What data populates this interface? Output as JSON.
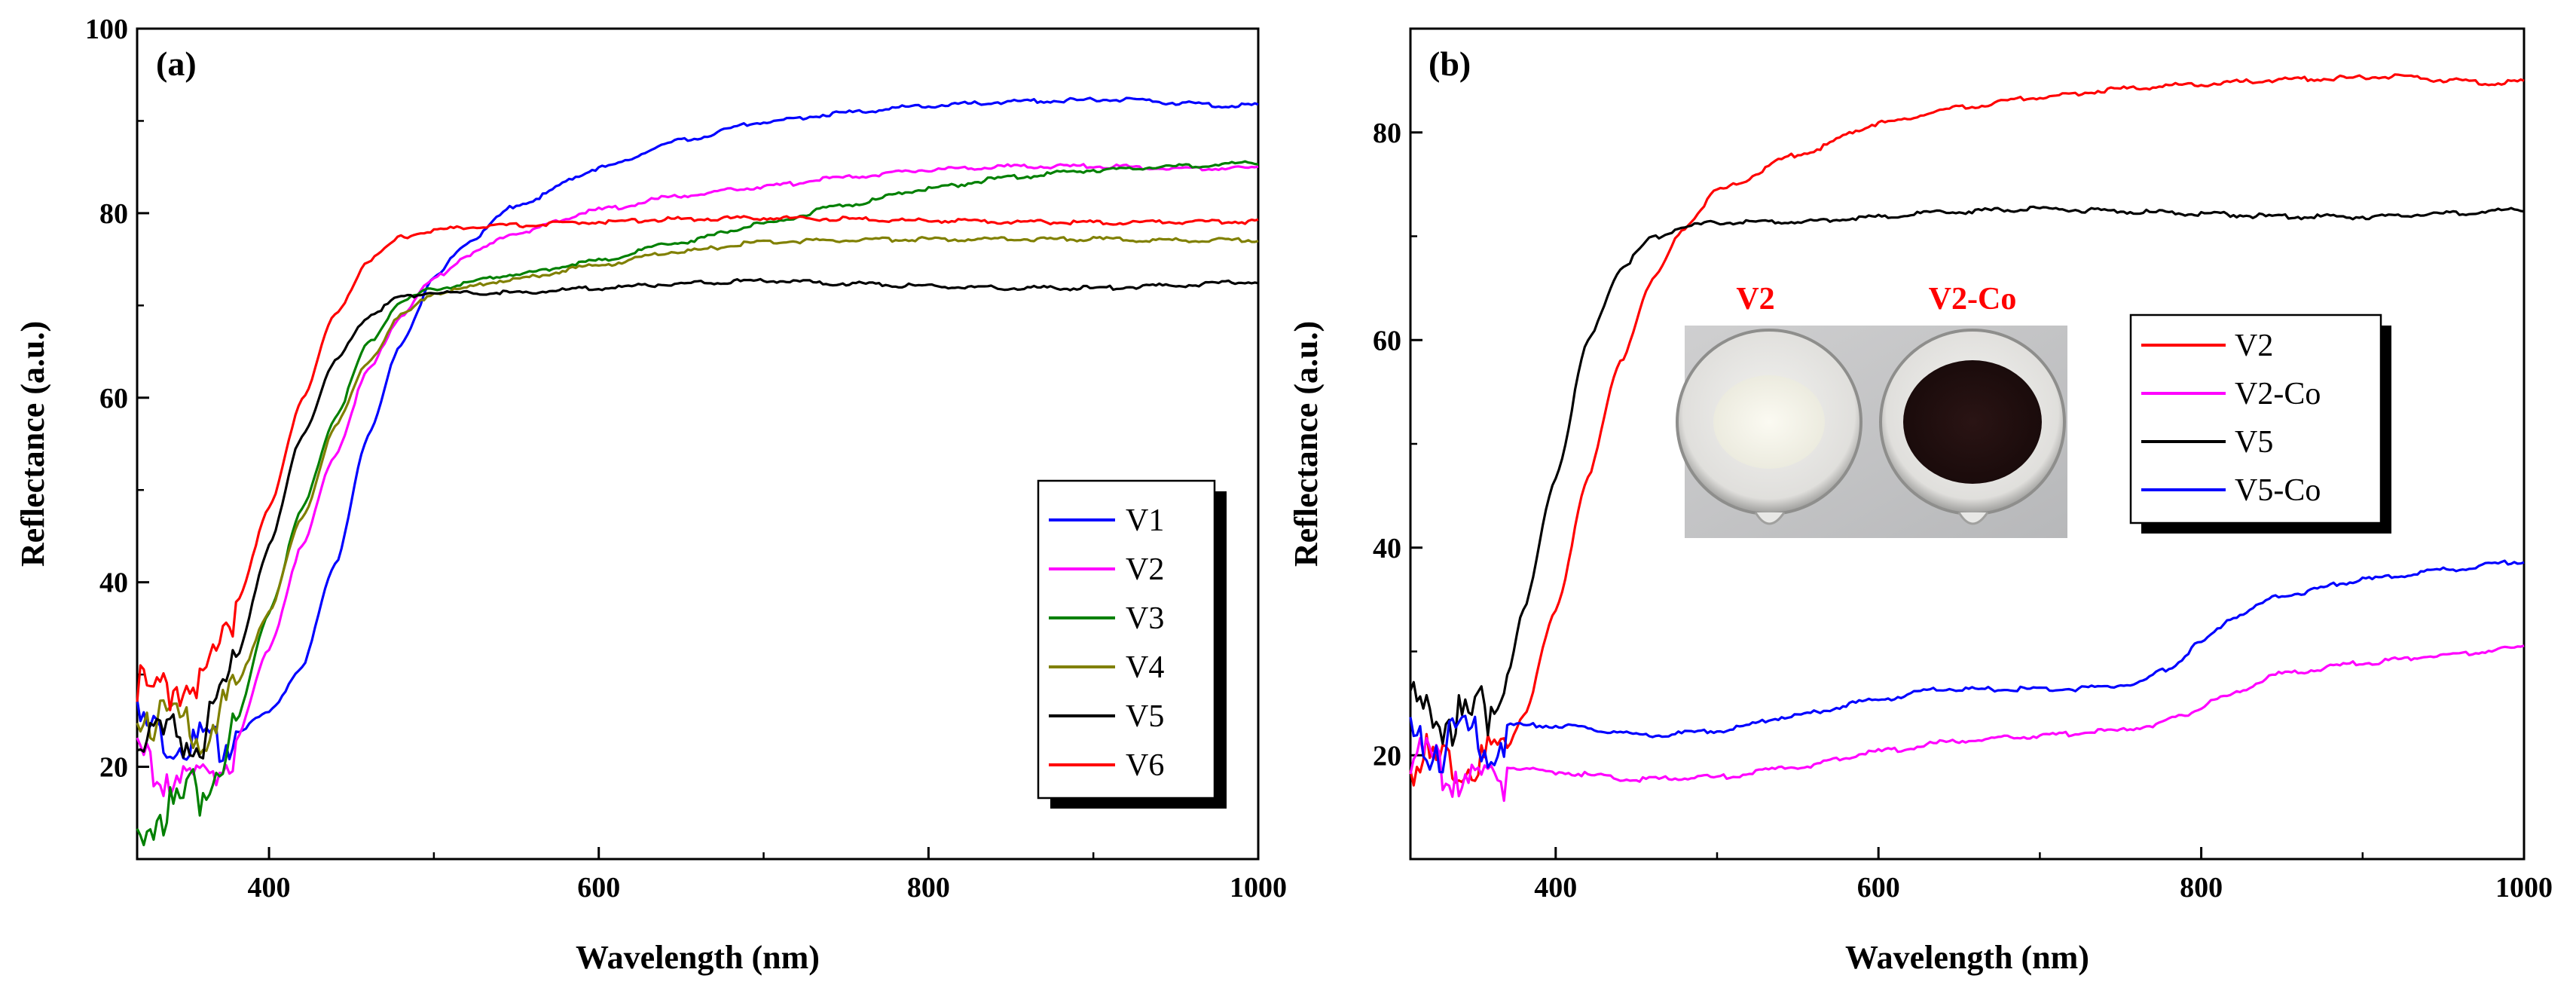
{
  "chart_data": [
    {
      "type": "line",
      "panel_label": "(a)",
      "xlabel": "Wavelength (nm)",
      "ylabel": "Reflectance (a.u.)",
      "xlim": [
        320,
        1000
      ],
      "ylim": [
        10,
        100
      ],
      "xticks": [
        400,
        600,
        800,
        1000
      ],
      "yticks": [
        20,
        40,
        60,
        80,
        100
      ],
      "legend_position": "bottom-right",
      "series": [
        {
          "name": "V1",
          "color": "#0000ff",
          "x": [
            320,
            340,
            360,
            380,
            400,
            420,
            440,
            460,
            480,
            500,
            520,
            550,
            600,
            650,
            700,
            750,
            800,
            850,
            900,
            920,
            950,
            980,
            1000
          ],
          "y": [
            26,
            24,
            23.5,
            24,
            26,
            31,
            42,
            56,
            66,
            73,
            77,
            81,
            85,
            88,
            90,
            91,
            91.8,
            92.2,
            92.4,
            92.4,
            92.1,
            91.8,
            91.8
          ]
        },
        {
          "name": "V2",
          "color": "#ff00ff",
          "x": [
            320,
            340,
            360,
            380,
            400,
            420,
            440,
            460,
            480,
            500,
            520,
            550,
            600,
            650,
            700,
            750,
            800,
            850,
            900,
            950,
            1000
          ],
          "y": [
            22,
            20.5,
            20.5,
            23,
            33,
            44,
            54,
            63,
            69,
            73,
            75.5,
            78,
            80.5,
            82,
            83,
            84,
            84.8,
            85.2,
            85.2,
            85,
            85
          ]
        },
        {
          "name": "V3",
          "color": "#008000",
          "x": [
            320,
            330,
            340,
            360,
            380,
            400,
            420,
            440,
            460,
            480,
            500,
            550,
            600,
            650,
            700,
            750,
            800,
            850,
            900,
            950,
            1000
          ],
          "y": [
            13,
            16,
            17,
            19,
            25,
            37,
            48,
            58,
            66,
            70.5,
            72,
            73.5,
            75,
            77,
            79,
            81,
            82.8,
            84,
            84.8,
            85.2,
            85.6
          ]
        },
        {
          "name": "V4",
          "color": "#808000",
          "x": [
            320,
            340,
            360,
            380,
            400,
            420,
            440,
            460,
            480,
            500,
            550,
            600,
            650,
            700,
            750,
            800,
            850,
            900,
            950,
            1000
          ],
          "y": [
            28,
            26,
            25.5,
            29,
            37,
            47,
            57,
            64,
            69,
            71.5,
            73,
            74.5,
            76,
            77,
            77.2,
            77.3,
            77.3,
            77.3,
            77.2,
            77.2
          ]
        },
        {
          "name": "V5",
          "color": "#000000",
          "x": [
            320,
            340,
            360,
            380,
            400,
            420,
            440,
            460,
            480,
            500,
            550,
            600,
            650,
            700,
            750,
            800,
            850,
            900,
            950,
            1000
          ],
          "y": [
            25,
            24.5,
            25,
            32,
            44,
            56,
            64,
            69,
            71,
            71.5,
            71.5,
            72,
            72.5,
            72.8,
            72.5,
            72.2,
            72,
            72,
            72.3,
            72.7
          ]
        },
        {
          "name": "V6",
          "color": "#ff0000",
          "x": [
            320,
            340,
            360,
            380,
            400,
            420,
            440,
            460,
            480,
            500,
            520,
            550,
            600,
            650,
            700,
            750,
            800,
            850,
            900,
            950,
            1000
          ],
          "y": [
            30,
            30,
            31,
            38,
            48,
            60,
            69,
            75,
            77.5,
            78.3,
            78.6,
            78.8,
            79.2,
            79.5,
            79.6,
            79.5,
            79.3,
            79.2,
            79.1,
            79.2,
            79.2
          ]
        }
      ]
    },
    {
      "type": "line",
      "panel_label": "(b)",
      "xlabel": "Wavelength (nm)",
      "ylabel": "Reflectance (a.u.)",
      "xlim": [
        310,
        1000
      ],
      "ylim": [
        10,
        90
      ],
      "xticks": [
        400,
        600,
        800,
        1000
      ],
      "yticks": [
        20,
        40,
        60,
        80
      ],
      "legend_position": "center-right",
      "series": [
        {
          "name": "V2",
          "color": "#ff0000",
          "x": [
            310,
            330,
            350,
            370,
            380,
            400,
            420,
            440,
            460,
            480,
            500,
            550,
            600,
            650,
            700,
            750,
            800,
            850,
            900,
            920,
            950,
            980,
            1000
          ],
          "y": [
            21,
            20.5,
            20.5,
            21,
            24,
            34,
            47,
            58,
            66,
            71,
            74.5,
            78,
            81,
            82.5,
            83.5,
            84.3,
            84.8,
            85.2,
            85.4,
            85.5,
            85.2,
            84.9,
            85
          ]
        },
        {
          "name": "V2-Co",
          "color": "#ff00ff",
          "x": [
            310,
            330,
            350,
            370,
            400,
            450,
            500,
            550,
            600,
            650,
            700,
            750,
            770,
            790,
            810,
            850,
            900,
            950,
            1000
          ],
          "y": [
            21,
            20,
            19.5,
            19,
            18.5,
            17.8,
            18,
            19,
            20.5,
            21.5,
            22,
            22.5,
            23,
            24,
            25.5,
            28,
            29,
            29.8,
            30.5
          ]
        },
        {
          "name": "V5",
          "color": "#000000",
          "x": [
            310,
            330,
            350,
            370,
            380,
            400,
            420,
            440,
            460,
            480,
            500,
            550,
            600,
            650,
            700,
            750,
            800,
            850,
            900,
            950,
            1000
          ],
          "y": [
            26,
            25,
            25,
            28,
            34,
            47,
            60,
            67,
            70,
            71,
            71.5,
            71.5,
            72,
            72.5,
            72.8,
            72.5,
            72.3,
            72,
            72,
            72.3,
            72.7
          ]
        },
        {
          "name": "V5-Co",
          "color": "#0000ff",
          "x": [
            310,
            330,
            350,
            370,
            400,
            430,
            460,
            500,
            550,
            600,
            640,
            680,
            720,
            760,
            780,
            800,
            820,
            850,
            900,
            950,
            1000
          ],
          "y": [
            23,
            22.5,
            23,
            23,
            23,
            22.5,
            22,
            22.5,
            24,
            25.5,
            26.5,
            26.5,
            26.5,
            27,
            28.5,
            31,
            33.5,
            35.5,
            37,
            38,
            38.8
          ]
        }
      ],
      "inset": {
        "labels": [
          "V2",
          "V2-Co"
        ],
        "label_color": "#ff0000",
        "description": "photo"
      }
    }
  ]
}
